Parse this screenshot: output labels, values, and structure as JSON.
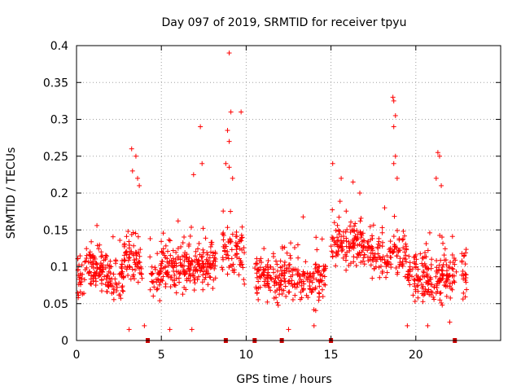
{
  "chart_data": {
    "type": "scatter",
    "title": "Day 097 of 2019, SRMTID for receiver tpyu",
    "xlabel": "GPS time / hours",
    "ylabel": "SRMTID / TECUs",
    "xlim": [
      0,
      25
    ],
    "ylim": [
      0,
      0.4
    ],
    "x_ticks": [
      0,
      5,
      10,
      15,
      20
    ],
    "x_tick_labels": [
      "0",
      "5",
      "10",
      "15",
      "20"
    ],
    "y_ticks": [
      0,
      0.05,
      0.1,
      0.15,
      0.2,
      0.25,
      0.3,
      0.35,
      0.4
    ],
    "y_tick_labels": [
      "0",
      "0.05",
      "0.1",
      "0.15",
      "0.2",
      "0.25",
      "0.3",
      "0.35",
      "0.4"
    ],
    "grid": true,
    "series": [
      {
        "name": "SRMTID",
        "marker": "plus",
        "color": "#ff0000",
        "x_range": [
          0,
          23
        ],
        "points": [
          [
            3.25,
            0.26
          ],
          [
            3.5,
            0.25
          ],
          [
            3.3,
            0.23
          ],
          [
            3.6,
            0.22
          ],
          [
            3.7,
            0.21
          ],
          [
            7.3,
            0.29
          ],
          [
            6.9,
            0.225
          ],
          [
            7.4,
            0.24
          ],
          [
            9.0,
            0.39
          ],
          [
            9.1,
            0.31
          ],
          [
            9.7,
            0.31
          ],
          [
            8.9,
            0.285
          ],
          [
            9.0,
            0.27
          ],
          [
            8.8,
            0.24
          ],
          [
            9.0,
            0.235
          ],
          [
            9.2,
            0.22
          ],
          [
            15.1,
            0.24
          ],
          [
            15.6,
            0.22
          ],
          [
            16.3,
            0.215
          ],
          [
            16.7,
            0.2
          ],
          [
            18.65,
            0.33
          ],
          [
            18.7,
            0.325
          ],
          [
            18.8,
            0.305
          ],
          [
            18.7,
            0.29
          ],
          [
            18.8,
            0.25
          ],
          [
            18.7,
            0.24
          ],
          [
            18.9,
            0.22
          ],
          [
            21.3,
            0.255
          ],
          [
            21.4,
            0.25
          ],
          [
            21.5,
            0.21
          ],
          [
            21.2,
            0.22
          ],
          [
            3.1,
            0.015
          ],
          [
            4.0,
            0.02
          ],
          [
            5.5,
            0.015
          ],
          [
            6.8,
            0.015
          ],
          [
            12.5,
            0.015
          ],
          [
            14.0,
            0.02
          ],
          [
            19.5,
            0.02
          ],
          [
            20.7,
            0.02
          ],
          [
            22.0,
            0.025
          ]
        ]
      }
    ],
    "data_gaps_hours": [
      4.2,
      8.8,
      10.5,
      12.1,
      15.0,
      22.3
    ]
  }
}
